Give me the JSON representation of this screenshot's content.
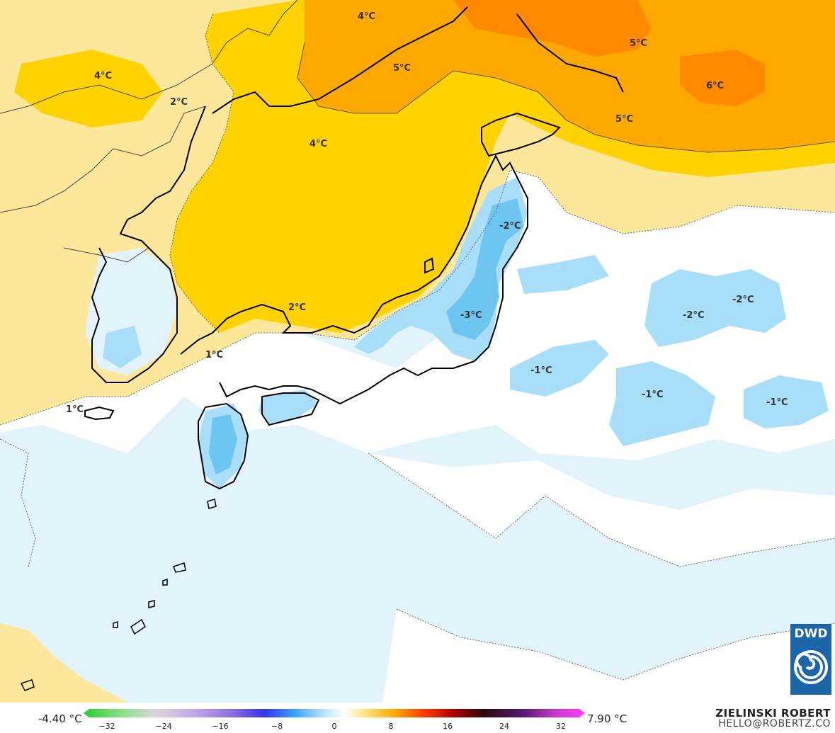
{
  "map": {
    "labels": [
      {
        "id": "label-4c-a",
        "text": "4°C"
      },
      {
        "id": "label-4c-b",
        "text": "4°C"
      },
      {
        "id": "label-2c-a",
        "text": "2°C"
      },
      {
        "id": "label-5c-a",
        "text": "5°C"
      },
      {
        "id": "label-5c-b",
        "text": "5°C"
      },
      {
        "id": "label-6c",
        "text": "6°C"
      },
      {
        "id": "label-5c-c",
        "text": "5°C"
      },
      {
        "id": "label-4c-c",
        "text": "4°C"
      },
      {
        "id": "label-m2c-a",
        "text": "-2°C"
      },
      {
        "id": "label-2c-b",
        "text": "2°C"
      },
      {
        "id": "label-m3c",
        "text": "-3°C"
      },
      {
        "id": "label-m2c-b",
        "text": "-2°C"
      },
      {
        "id": "label-m2c-c",
        "text": "-2°C"
      },
      {
        "id": "label-1c-a",
        "text": "1°C"
      },
      {
        "id": "label-m1c-a",
        "text": "-1°C"
      },
      {
        "id": "label-m1c-b",
        "text": "-1°C"
      },
      {
        "id": "label-m1c-c",
        "text": "-1°C"
      },
      {
        "id": "label-1c-b",
        "text": "1°C"
      }
    ],
    "colors": {
      "warm_light": "#fde79a",
      "warm_mid": "#ffd200",
      "warm_orange": "#ffa800",
      "warm_deep": "#ff8a00",
      "cold_light": "#e3f3fb",
      "cold_mid": "#a8defa",
      "cold_deep": "#6cc6f0",
      "coast": "#000000",
      "border": "#444444"
    }
  },
  "legend": {
    "min_value": "-4.40 °C",
    "max_value": "7.90 °C",
    "ticks": [
      "−32",
      "−24",
      "−16",
      "−8",
      "0",
      "8",
      "16",
      "24",
      "32"
    ]
  },
  "credit": {
    "name": "ZIELINSKI ROBERT",
    "email": "HELLO@ROBERTZ.CO"
  },
  "logo": {
    "text": "DWD"
  }
}
